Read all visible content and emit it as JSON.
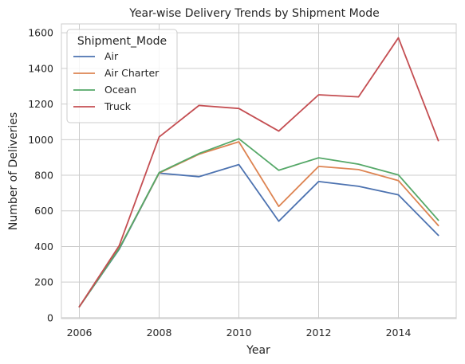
{
  "chart_data": {
    "type": "line",
    "title": "Year-wise Delivery Trends by Shipment Mode",
    "xlabel": "Year",
    "ylabel": "Number of Deliveries",
    "x": [
      2006,
      2007,
      2008,
      2009,
      2010,
      2011,
      2012,
      2013,
      2014,
      2015
    ],
    "xlim": [
      2005.55,
      2015.45
    ],
    "ylim": [
      -5,
      1650
    ],
    "xticks": [
      2006,
      2008,
      2010,
      2012,
      2014
    ],
    "yticks": [
      0,
      200,
      400,
      600,
      800,
      1000,
      1200,
      1400,
      1600
    ],
    "grid": true,
    "legend": {
      "title": "Shipment_Mode",
      "placement": "top-left"
    },
    "series": [
      {
        "name": "Air",
        "color": "#4c72b0",
        "values": [
          62,
          385,
          812,
          792,
          860,
          542,
          765,
          738,
          690,
          463
        ]
      },
      {
        "name": "Air Charter",
        "color": "#dd8452",
        "values": [
          62,
          390,
          812,
          918,
          988,
          625,
          850,
          832,
          770,
          518
        ]
      },
      {
        "name": "Ocean",
        "color": "#55a868",
        "values": [
          62,
          388,
          815,
          922,
          1005,
          828,
          898,
          862,
          802,
          548
        ]
      },
      {
        "name": "Truck",
        "color": "#c44e52",
        "values": [
          62,
          405,
          1015,
          1192,
          1175,
          1048,
          1252,
          1240,
          1572,
          995
        ]
      }
    ]
  }
}
